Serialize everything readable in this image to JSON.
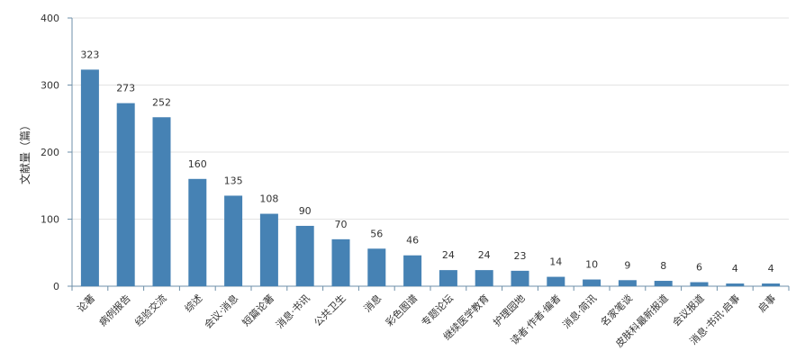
{
  "chart_data": {
    "type": "bar",
    "title": "",
    "xlabel": "",
    "ylabel": "文献量（篇）",
    "ylim": [
      0,
      400
    ],
    "yticks": [
      0,
      100,
      200,
      300,
      400
    ],
    "grid": true,
    "categories": [
      "论著",
      "病例报告",
      "经验交流",
      "综述",
      "会议·消息",
      "短篇论著",
      "消息·书讯",
      "公共卫生",
      "消息",
      "彩色图谱",
      "专题论坛",
      "继续医学教育",
      "护理园地",
      "读者·作者·编者",
      "消息·简讯",
      "名家笔谈",
      "皮肤科最新报道",
      "会议报道",
      "消息·书讯·启事",
      "启事"
    ],
    "values": [
      323,
      273,
      252,
      160,
      135,
      108,
      90,
      70,
      56,
      46,
      24,
      24,
      23,
      14,
      10,
      9,
      8,
      6,
      4,
      4
    ],
    "bar_color": "#4682b4"
  }
}
